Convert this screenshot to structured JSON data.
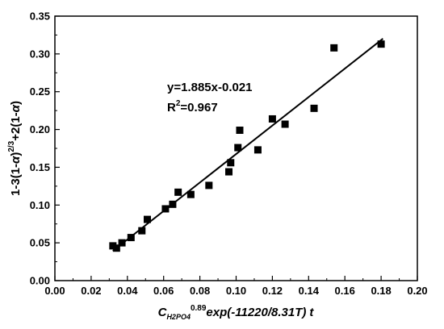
{
  "chart_data": {
    "type": "scatter",
    "title": "",
    "xlabel": {
      "main": "C",
      "sub": "H2PO4",
      "sup": "0.89",
      "rest": "exp(-11220/8.31",
      "T": "T",
      "end": ")",
      "t": "t"
    },
    "ylabel": {
      "part1": "1-3(1-",
      "alpha1": "α",
      "part2": ")",
      "sup": "2/3",
      "part3": "+2(1-",
      "alpha2": "α",
      "part4": ")"
    },
    "xlim": [
      0.0,
      0.2
    ],
    "ylim": [
      0.0,
      0.35
    ],
    "xticks": [
      "0.00",
      "0.02",
      "0.04",
      "0.06",
      "0.08",
      "0.10",
      "0.12",
      "0.14",
      "0.16",
      "0.18",
      "0.20"
    ],
    "yticks": [
      "0.00",
      "0.05",
      "0.10",
      "0.15",
      "0.20",
      "0.25",
      "0.30",
      "0.35"
    ],
    "grid": false,
    "marker": "filled-square",
    "color": "#000000",
    "points": [
      {
        "x": 0.032,
        "y": 0.046
      },
      {
        "x": 0.034,
        "y": 0.043
      },
      {
        "x": 0.037,
        "y": 0.05
      },
      {
        "x": 0.042,
        "y": 0.057
      },
      {
        "x": 0.048,
        "y": 0.066
      },
      {
        "x": 0.051,
        "y": 0.081
      },
      {
        "x": 0.061,
        "y": 0.095
      },
      {
        "x": 0.065,
        "y": 0.101
      },
      {
        "x": 0.068,
        "y": 0.117
      },
      {
        "x": 0.075,
        "y": 0.114
      },
      {
        "x": 0.085,
        "y": 0.126
      },
      {
        "x": 0.096,
        "y": 0.144
      },
      {
        "x": 0.097,
        "y": 0.156
      },
      {
        "x": 0.101,
        "y": 0.176
      },
      {
        "x": 0.102,
        "y": 0.199
      },
      {
        "x": 0.112,
        "y": 0.173
      },
      {
        "x": 0.12,
        "y": 0.214
      },
      {
        "x": 0.127,
        "y": 0.207
      },
      {
        "x": 0.143,
        "y": 0.228
      },
      {
        "x": 0.154,
        "y": 0.308
      },
      {
        "x": 0.18,
        "y": 0.313
      }
    ],
    "fit_line": {
      "slope": 1.885,
      "intercept": -0.021,
      "x_range": [
        0.032,
        0.181
      ]
    },
    "annotations": {
      "equation": "y=1.885x-0.021",
      "r2_prefix": "R",
      "r2_sup": "2",
      "r2_suffix": "=0.967"
    }
  }
}
